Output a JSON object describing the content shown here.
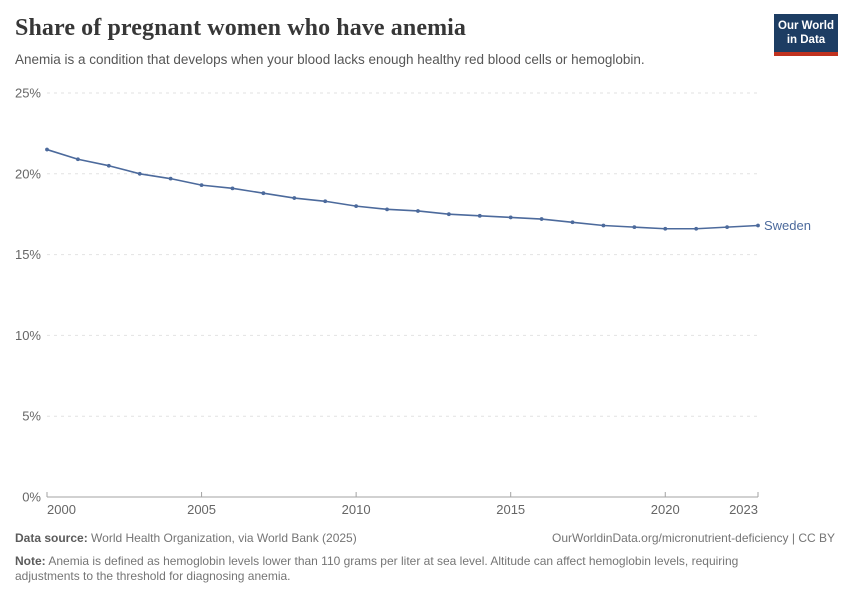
{
  "header": {
    "title": "Share of pregnant women who have anemia",
    "subtitle": "Anemia is a condition that develops when your blood lacks enough healthy red blood cells or hemoglobin.",
    "logo": {
      "line1": "Our World",
      "line2": "in Data",
      "bg_color": "#1d3d63",
      "accent_color": "#c0321f"
    }
  },
  "chart_data": {
    "type": "line",
    "title": "Share of pregnant women who have anemia",
    "x": [
      2000,
      2001,
      2002,
      2003,
      2004,
      2005,
      2006,
      2007,
      2008,
      2009,
      2010,
      2011,
      2012,
      2013,
      2014,
      2015,
      2016,
      2017,
      2018,
      2019,
      2020,
      2021,
      2022,
      2023
    ],
    "series": [
      {
        "name": "Sweden",
        "color": "#4C6A9C",
        "values": [
          21.5,
          20.9,
          20.5,
          20.0,
          19.7,
          19.3,
          19.1,
          18.8,
          18.5,
          18.3,
          18.0,
          17.8,
          17.7,
          17.5,
          17.4,
          17.3,
          17.2,
          17.0,
          16.8,
          16.7,
          16.6,
          16.6,
          16.7,
          16.8
        ]
      }
    ],
    "xlabel": "",
    "ylabel": "",
    "ylim": [
      0,
      25
    ],
    "yticks": [
      0,
      5,
      10,
      15,
      20,
      25
    ],
    "ytick_suffix": "%",
    "xticks": [
      2000,
      2005,
      2010,
      2015,
      2020,
      2023
    ],
    "grid": "horizontal-dashed",
    "legend_position": "end-of-line-label"
  },
  "footer": {
    "datasource_label": "Data source:",
    "datasource_text": " World Health Organization, via World Bank (2025)",
    "rights": "OurWorldinData.org/micronutrient-deficiency | CC BY",
    "note_label": "Note:",
    "note_text": " Anemia is defined as hemoglobin levels lower than 110 grams per liter at sea level. Altitude can affect hemoglobin levels, requiring adjustments to the threshold for diagnosing anemia."
  }
}
